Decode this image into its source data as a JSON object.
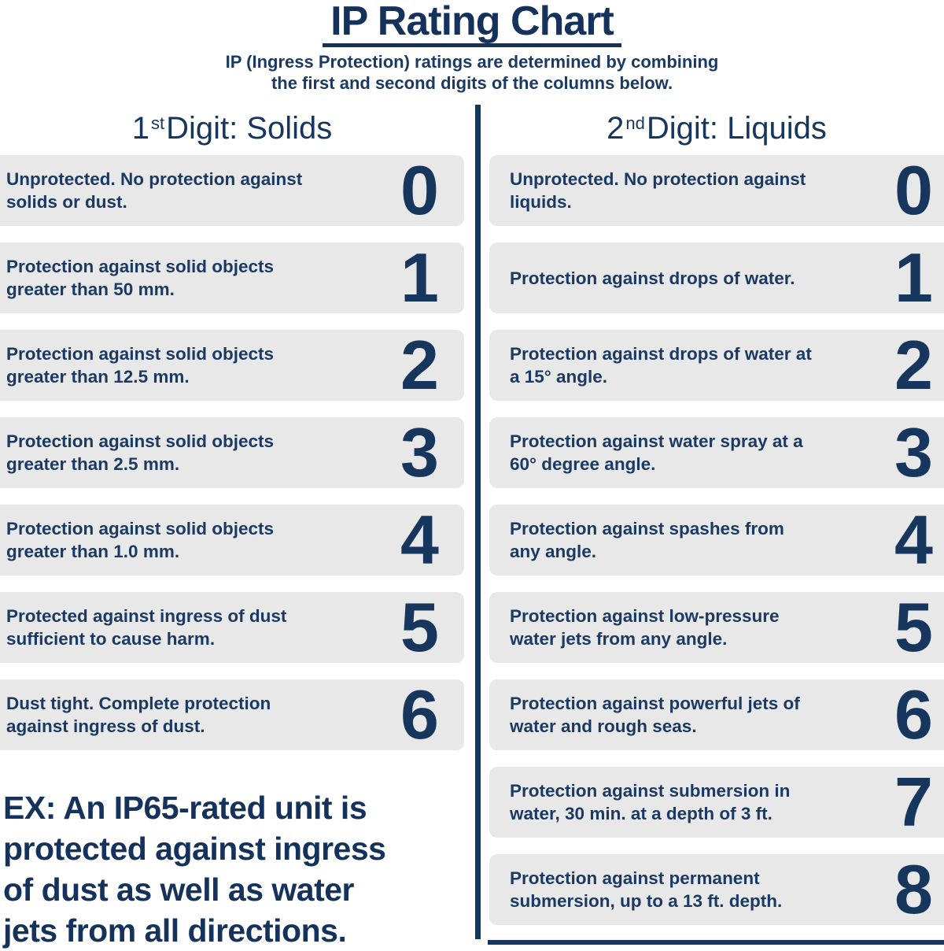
{
  "header": {
    "title": "IP Rating Chart",
    "subtitle_line1": "IP (Ingress Protection) ratings are determined by combining",
    "subtitle_line2": "the first and second digits of the columns below."
  },
  "colors": {
    "navy": "#17365e",
    "row_background": "#e8e8e8",
    "page_background": "#ffffff"
  },
  "columns": {
    "solids": {
      "heading_number": "1",
      "heading_ordinal": "st",
      "heading_rest": " Digit: Solids",
      "rows": [
        {
          "digit": "0",
          "description": "Unprotected. No protection against solids or dust."
        },
        {
          "digit": "1",
          "description": "Protection against solid objects greater than 50 mm."
        },
        {
          "digit": "2",
          "description": "Protection against solid objects greater than 12.5 mm."
        },
        {
          "digit": "3",
          "description": "Protection against solid objects greater than 2.5 mm."
        },
        {
          "digit": "4",
          "description": "Protection against solid objects greater than 1.0 mm."
        },
        {
          "digit": "5",
          "description": "Protected against ingress of dust sufficient to cause harm."
        },
        {
          "digit": "6",
          "description": "Dust tight. Complete protection against ingress of dust."
        }
      ]
    },
    "liquids": {
      "heading_number": "2",
      "heading_ordinal": "nd",
      "heading_rest": " Digit: Liquids",
      "rows": [
        {
          "digit": "0",
          "description": "Unprotected. No protection against liquids."
        },
        {
          "digit": "1",
          "description": "Protection against drops of water."
        },
        {
          "digit": "2",
          "description": "Protection against drops of water at a 15° angle."
        },
        {
          "digit": "3",
          "description": "Protection against water spray at a 60° degree angle."
        },
        {
          "digit": "4",
          "description": "Protection against spashes from any angle."
        },
        {
          "digit": "5",
          "description": "Protection against low-pressure water jets from any angle."
        },
        {
          "digit": "6",
          "description": "Protection against powerful jets of water and rough seas."
        },
        {
          "digit": "7",
          "description": "Protection against submersion in water, 30 min. at a depth of 3 ft."
        },
        {
          "digit": "8",
          "description": "Protection against permanent submersion, up to a 13 ft. depth."
        }
      ]
    }
  },
  "example": {
    "lines": [
      "EX: An IP65-rated unit is",
      "protected against ingress",
      "of dust as well as water",
      "jets from all directions."
    ]
  }
}
